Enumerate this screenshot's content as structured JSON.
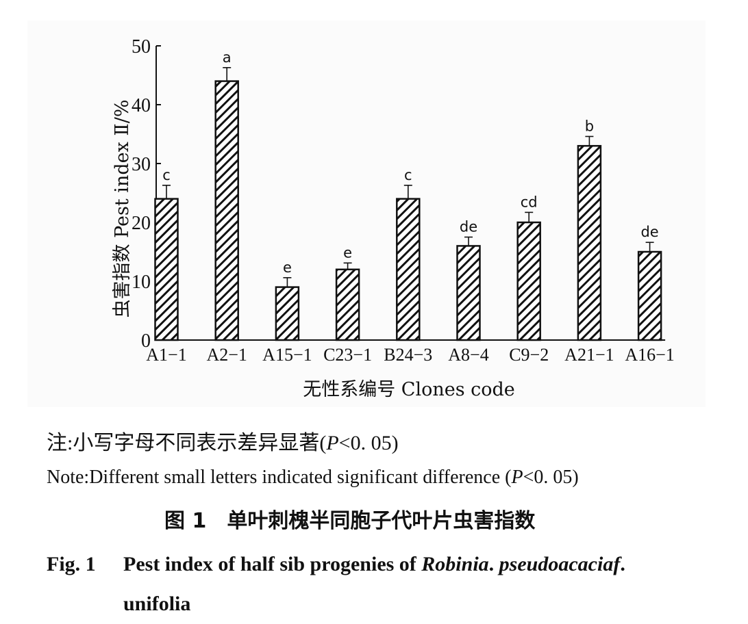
{
  "chart_data": {
    "type": "bar",
    "categories": [
      "A1-1",
      "A2-1",
      "A15-1",
      "C23-1",
      "B24-3",
      "A8-4",
      "C9-2",
      "A21-1",
      "A16-1"
    ],
    "series": [
      {
        "values": [
          24,
          44,
          9,
          12,
          24,
          16,
          20,
          33,
          15
        ],
        "errors": [
          2.3,
          2.3,
          1.6,
          1.1,
          2.3,
          1.5,
          1.7,
          1.6,
          1.6
        ],
        "letters": [
          "c",
          "a",
          "e",
          "e",
          "c",
          "de",
          "cd",
          "b",
          "de"
        ]
      }
    ],
    "xlabel": "无性系编号 Clones code",
    "ylabel": "虫害指数 Pest index Ⅱ/%",
    "ylim": [
      0,
      50
    ],
    "yticks": [
      "0",
      "10",
      "20",
      "30",
      "40",
      "50"
    ],
    "bar_style": "diagonal hatch",
    "grid": false,
    "legend": "none"
  },
  "notes": {
    "cn_prefix": "注:小写字母不同表示差异显著(",
    "en_prefix": "Note:Different small letters indicated significant difference (",
    "p_symbol": "P",
    "p_value": "<0. 05",
    "close_paren": ")"
  },
  "figure_title": {
    "cn_label": "图 1",
    "cn_text": "单叶刺槐半同胞子代叶片虫害指数",
    "en_label": "Fig. 1",
    "en_text_1": "Pest index of half sib progenies of ",
    "en_italic_1": "Robinia",
    "en_text_2": ". ",
    "en_italic_2": "pseudoacacia",
    "en_italic_3": "f",
    "en_text_3": ". unifolia"
  }
}
